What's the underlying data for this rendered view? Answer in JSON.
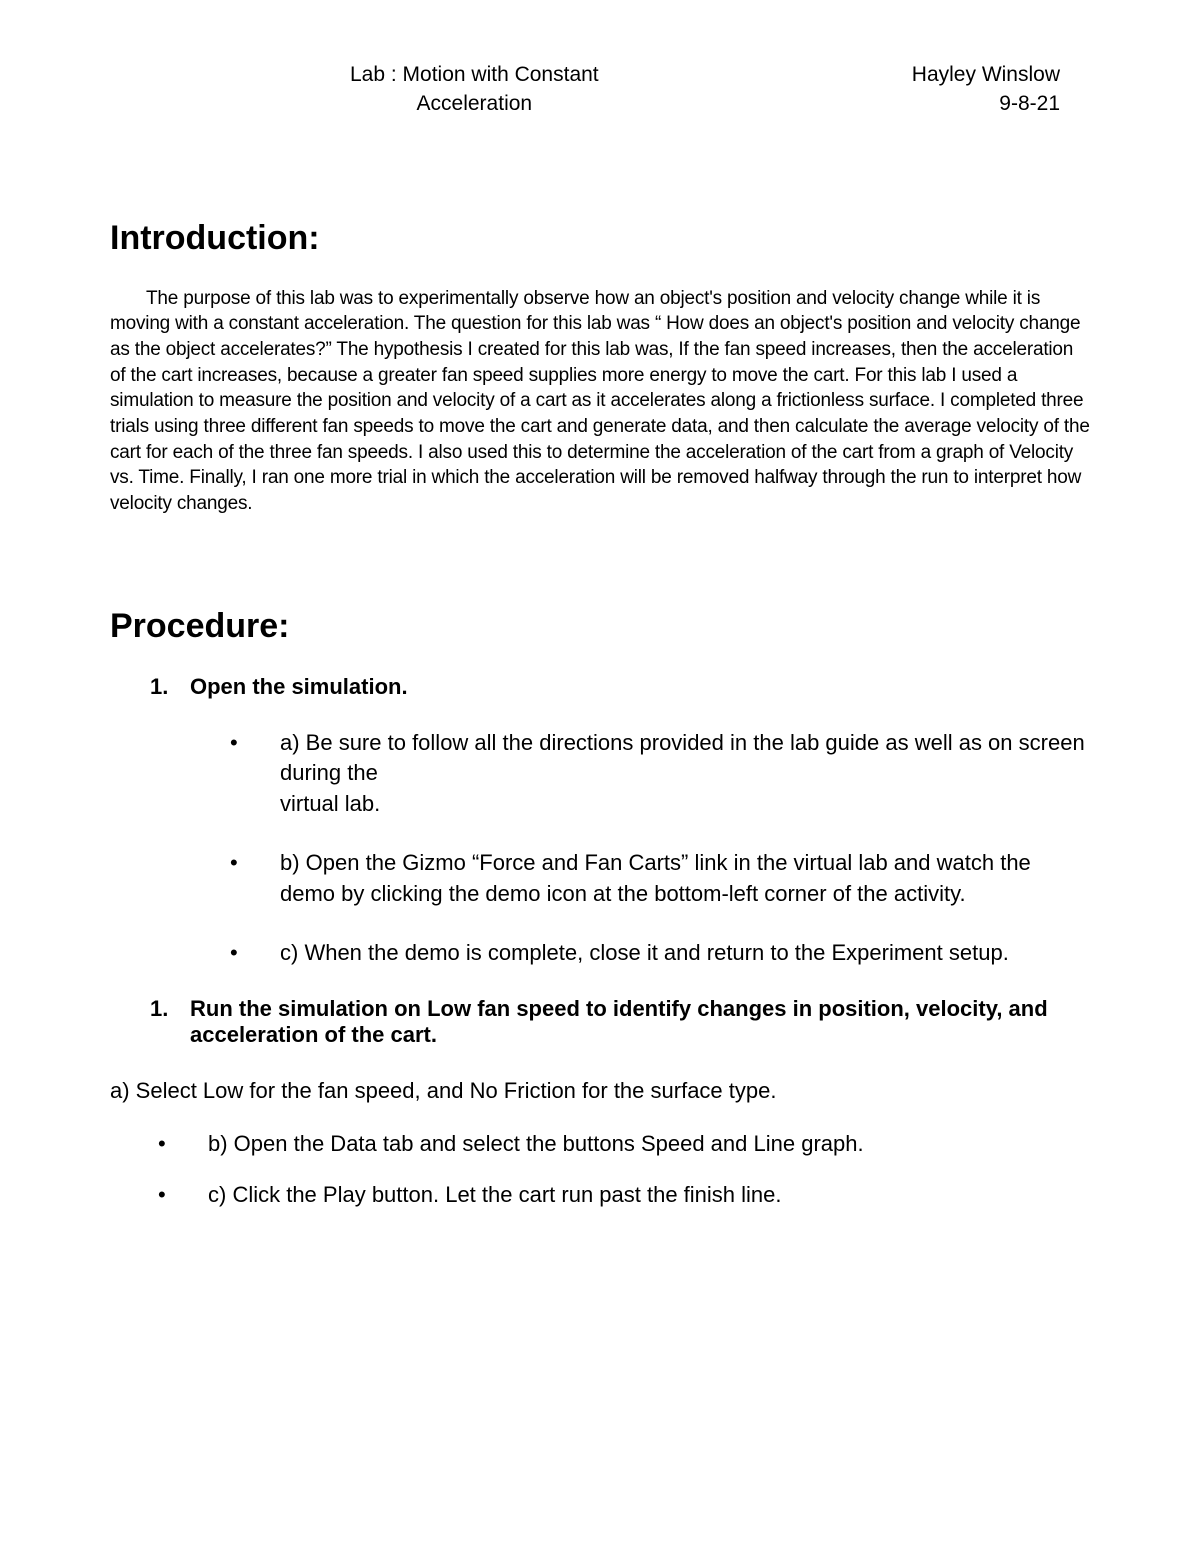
{
  "header": {
    "title_line1": "Lab : Motion with Constant",
    "title_line2": "Acceleration",
    "author": "Hayley Winslow",
    "date": "9-8-21"
  },
  "introduction": {
    "heading": "Introduction:",
    "body": "The purpose of this lab was to experimentally observe how an object's position and velocity change while it is moving with a constant acceleration. The question for this lab was “ How does an object's position and velocity change as the object accelerates?” The hypothesis I created for this lab was, If the fan speed increases, then the acceleration of the cart increases, because a greater fan speed supplies more energy to move the cart. For this lab I used a simulation to measure the position and velocity of a cart as it accelerates along a frictionless surface. I completed three trials using three different fan speeds to move the cart and generate data, and then calculate the average velocity of the cart for each of the three fan speeds. I also used this to determine the acceleration of the cart from a graph of Velocity vs. Time. Finally, I ran one more trial in which the acceleration will be removed halfway through the run to interpret how velocity changes."
  },
  "procedure": {
    "heading": "Procedure:",
    "step1": {
      "number": "1.",
      "title": "Open the simulation.",
      "sub_a": "a)  Be sure to follow all the directions provided in the lab guide as well as on screen during the",
      "sub_a_cont": "virtual lab.",
      "sub_b": "b)  Open the Gizmo “Force and Fan Carts” link in the virtual lab and watch the demo by clicking the demo icon at the bottom-left corner of the activity.",
      "sub_c": "c)  When the demo is complete, close it and return to the Experiment setup."
    },
    "step2": {
      "number": "1.",
      "title": "Run the simulation on Low fan speed to identify changes in position, velocity, and acceleration of the cart.",
      "sub_a": "a) Select Low for the fan speed, and No Friction for the surface type.",
      "sub_b": "b)  Open the Data tab and select the buttons Speed and Line graph.",
      "sub_c": "c)  Click the Play button. Let the cart run past the finish line."
    }
  },
  "styles": {
    "background_color": "#ffffff",
    "text_color": "#000000",
    "heading_fontsize": 34,
    "body_fontsize": 19,
    "list_fontsize": 22,
    "header_fontsize": 21
  }
}
